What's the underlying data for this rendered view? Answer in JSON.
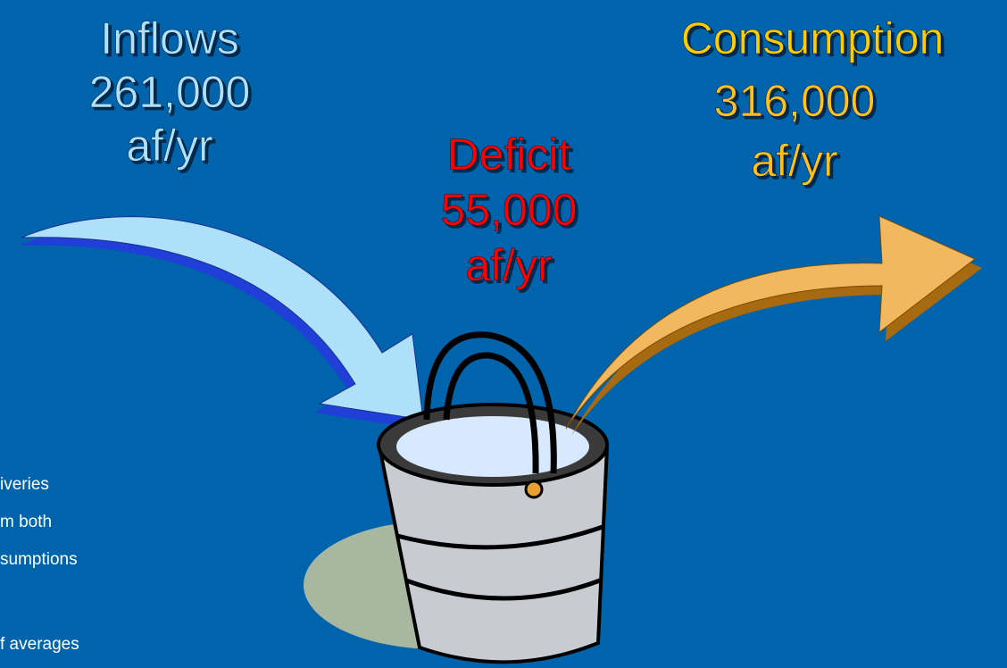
{
  "inflows": {
    "title": "Inflows",
    "amount": "261,000",
    "unit": "af/yr"
  },
  "deficit": {
    "title": "Deficit",
    "amount": "55,000",
    "unit": "af/yr"
  },
  "consumption": {
    "title": "Consumption",
    "amount": "316,000",
    "unit": "af/yr"
  },
  "notes": [
    "iveries",
    "m both",
    "sumptions",
    "f averages"
  ]
}
